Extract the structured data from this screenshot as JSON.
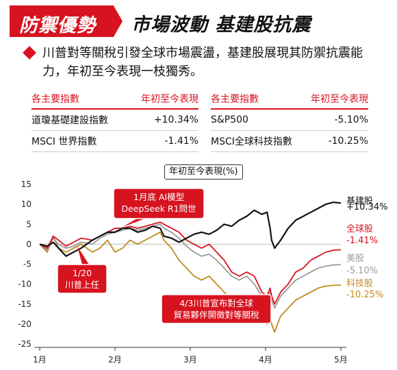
{
  "header": {
    "tag": "防禦優勢",
    "headline": "市場波動 基建股抗震"
  },
  "lead": "川普對等關稅引發全球市場震盪，基建股展現其防禦抗震能力，年初至今表現一枝獨秀。",
  "table": {
    "left": {
      "col1": "各主要指數",
      "col2": "年初至今表現",
      "rows": [
        {
          "name": "道瓊基礎建設指數",
          "value": "+10.34%"
        },
        {
          "name": "MSCI 世界指數",
          "value": "-1.41%"
        }
      ]
    },
    "right": {
      "col1": "各主要指數",
      "col2": "年初至今表現",
      "rows": [
        {
          "name": "S&P500",
          "value": "-5.10%"
        },
        {
          "name": "MSCI全球科技指數",
          "value": "-10.25%"
        }
      ]
    }
  },
  "colors": {
    "accent": "#d7131f",
    "infra": "#111111",
    "global": "#d7131f",
    "us": "#9a9a9a",
    "tech": "#c08a1e"
  },
  "chart_data": {
    "type": "line",
    "title": "年初至今表現(%)",
    "ylim": [
      -25,
      15
    ],
    "y_ticks": [
      15,
      10,
      5,
      0,
      -5,
      -10,
      -15,
      -20,
      -25
    ],
    "x_range": [
      1,
      5
    ],
    "x_ticks": [
      {
        "x": 1,
        "label": "1月"
      },
      {
        "x": 2,
        "label": "2月"
      },
      {
        "x": 3,
        "label": "3月"
      },
      {
        "x": 4,
        "label": "4月"
      },
      {
        "x": 5,
        "label": "5月"
      }
    ],
    "grid": false,
    "series": [
      {
        "name": "基建股",
        "value_label": "+10.34%",
        "color": "#111111",
        "width": 2.2,
        "x": [
          1.0,
          1.1,
          1.18,
          1.25,
          1.35,
          1.45,
          1.55,
          1.7,
          1.8,
          1.9,
          2.0,
          2.1,
          2.2,
          2.3,
          2.4,
          2.5,
          2.6,
          2.65,
          2.75,
          2.85,
          2.95,
          3.05,
          3.15,
          3.25,
          3.35,
          3.45,
          3.55,
          3.65,
          3.75,
          3.85,
          3.95,
          4.02,
          4.06,
          4.08,
          4.12,
          4.2,
          4.3,
          4.4,
          4.5,
          4.6,
          4.7,
          4.8,
          4.9,
          5.0
        ],
        "y": [
          0,
          -0.5,
          0.5,
          -1,
          -3,
          -2,
          -1,
          1,
          2,
          3,
          3,
          4,
          4,
          3,
          3.5,
          4.5,
          4,
          2,
          1.5,
          0.5,
          1.5,
          2.5,
          3,
          2.5,
          3.5,
          5,
          4.5,
          6,
          7,
          8.5,
          7.5,
          8,
          4,
          1,
          -1,
          1,
          4,
          6,
          7,
          8,
          9,
          10,
          10.5,
          10.3
        ]
      },
      {
        "name": "全球股",
        "value_label": "-1.41%",
        "color": "#d7131f",
        "width": 1.8,
        "x": [
          1.0,
          1.1,
          1.18,
          1.25,
          1.35,
          1.45,
          1.55,
          1.7,
          1.8,
          1.9,
          2.0,
          2.1,
          2.2,
          2.3,
          2.4,
          2.5,
          2.6,
          2.65,
          2.75,
          2.85,
          2.95,
          3.05,
          3.15,
          3.25,
          3.35,
          3.45,
          3.55,
          3.65,
          3.75,
          3.85,
          3.95,
          4.02,
          4.06,
          4.08,
          4.12,
          4.2,
          4.3,
          4.4,
          4.5,
          4.6,
          4.7,
          4.8,
          4.9,
          5.0
        ],
        "y": [
          0,
          -1,
          2,
          1,
          -0.5,
          0.5,
          1.5,
          1,
          2,
          3,
          4,
          4,
          4.5,
          4,
          4.5,
          5,
          5.5,
          5,
          4,
          3,
          1,
          0,
          -1,
          0,
          -2,
          -4,
          -7,
          -8,
          -7,
          -8,
          -12,
          -13,
          -11,
          -13,
          -15,
          -12,
          -10,
          -7,
          -6,
          -4,
          -3,
          -2,
          -1.5,
          -1.4
        ]
      },
      {
        "name": "美股",
        "value_label": "-5.10%",
        "color": "#9a9a9a",
        "width": 1.8,
        "x": [
          1.0,
          1.1,
          1.18,
          1.25,
          1.35,
          1.45,
          1.55,
          1.7,
          1.8,
          1.9,
          2.0,
          2.1,
          2.2,
          2.3,
          2.4,
          2.5,
          2.6,
          2.65,
          2.75,
          2.85,
          2.95,
          3.05,
          3.15,
          3.25,
          3.35,
          3.45,
          3.55,
          3.65,
          3.75,
          3.85,
          3.95,
          4.02,
          4.06,
          4.08,
          4.12,
          4.2,
          4.3,
          4.4,
          4.5,
          4.6,
          4.7,
          4.8,
          4.9,
          5.0
        ],
        "y": [
          0,
          -1.5,
          1.5,
          0,
          -1,
          -0.5,
          0.5,
          0,
          1.5,
          2.5,
          3,
          3.5,
          4,
          3.5,
          4,
          4.5,
          5,
          4,
          3,
          1.5,
          -0.5,
          -2,
          -3,
          -2.5,
          -4,
          -6,
          -8,
          -9,
          -8,
          -10,
          -13,
          -14,
          -12,
          -14,
          -16,
          -13,
          -11,
          -9,
          -8,
          -7,
          -6,
          -5.5,
          -5.2,
          -5.1
        ]
      },
      {
        "name": "科技股",
        "value_label": "-10.25%",
        "color": "#c08a1e",
        "width": 1.8,
        "x": [
          1.0,
          1.1,
          1.18,
          1.25,
          1.35,
          1.45,
          1.55,
          1.7,
          1.8,
          1.9,
          2.0,
          2.1,
          2.2,
          2.3,
          2.4,
          2.5,
          2.6,
          2.65,
          2.75,
          2.85,
          2.95,
          3.05,
          3.15,
          3.25,
          3.35,
          3.45,
          3.55,
          3.65,
          3.75,
          3.85,
          3.95,
          4.02,
          4.06,
          4.08,
          4.12,
          4.2,
          4.3,
          4.4,
          4.5,
          4.6,
          4.7,
          4.8,
          4.9,
          5.0
        ],
        "y": [
          0,
          -2,
          2,
          -1,
          -2,
          -1,
          0,
          -2,
          -1,
          1,
          -2,
          -1,
          1,
          0,
          1,
          2,
          3,
          1,
          -1,
          -4,
          -6,
          -8,
          -9,
          -8,
          -10,
          -12,
          -14,
          -15,
          -14,
          -16,
          -19,
          -20,
          -18,
          -20,
          -22,
          -18,
          -16,
          -14,
          -13,
          -12,
          -11,
          -10.5,
          -10.3,
          -10.25
        ]
      }
    ],
    "annotations": [
      {
        "text": [
          "1月底 AI模型",
          "DeepSeek R1問世"
        ],
        "x": 2.05,
        "y": 4,
        "box": "center"
      },
      {
        "text": [
          "1/20",
          "川普上任"
        ],
        "x": 1.45,
        "y": -1,
        "box": "below"
      },
      {
        "text": [
          "4/3川普宣布對全球",
          "貿易夥伴開徵對等關稅"
        ],
        "x": 4.05,
        "y": -13,
        "box": "left"
      }
    ]
  }
}
